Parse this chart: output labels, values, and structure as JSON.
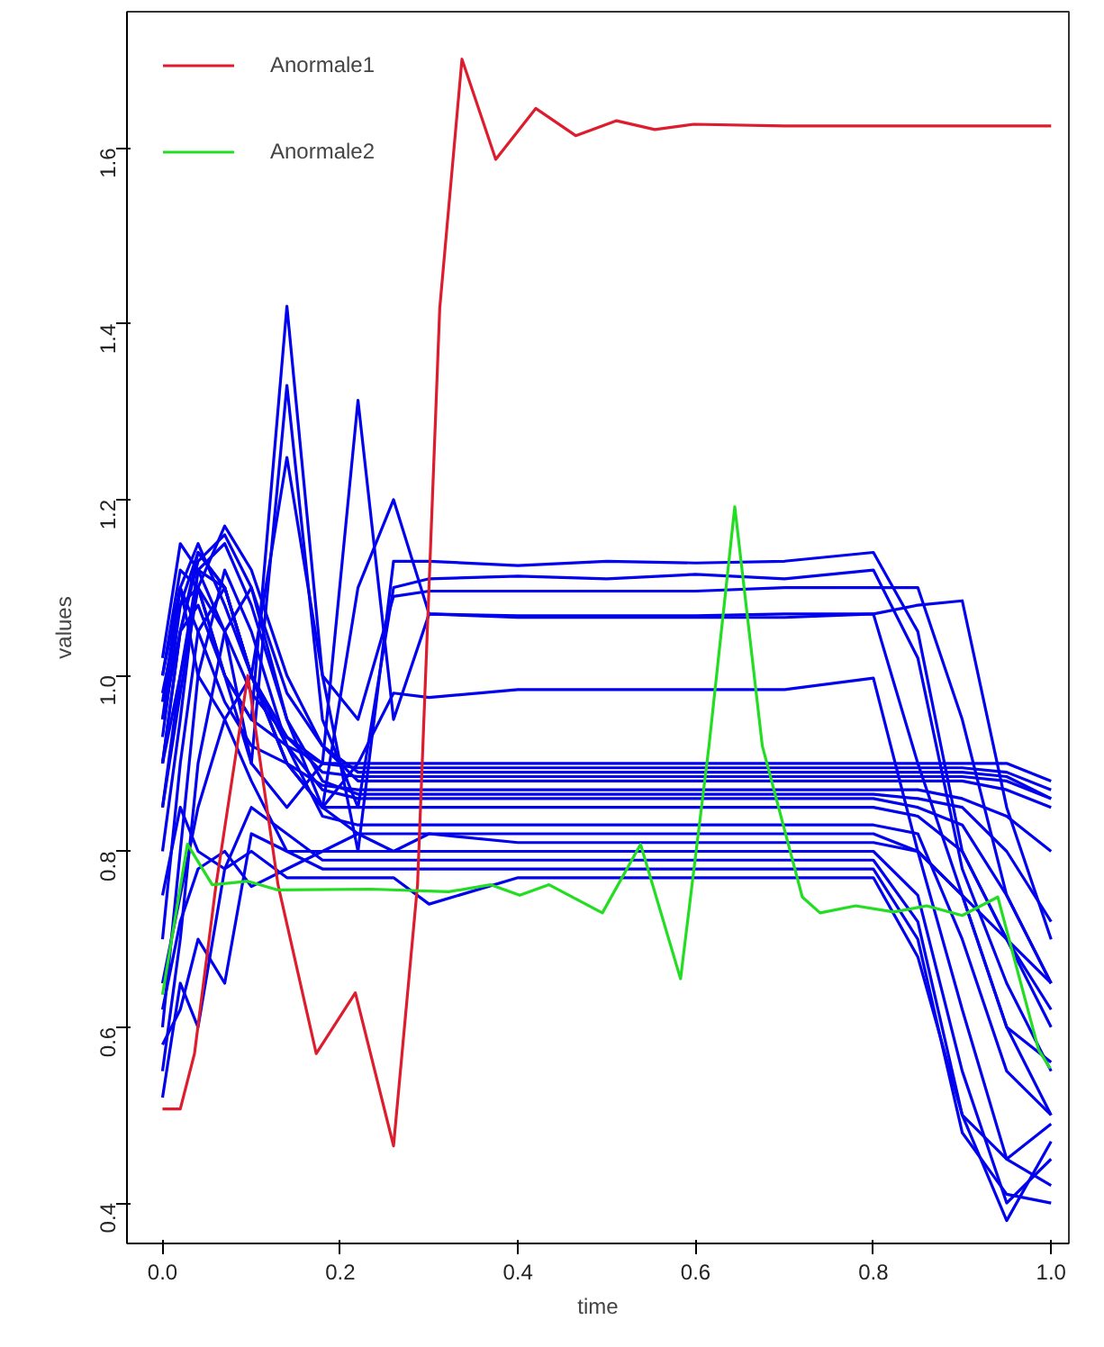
{
  "chart_data": {
    "type": "line",
    "xlabel": "time",
    "ylabel": "values",
    "legend": "top left",
    "xlim": [
      -0.04,
      1.02
    ],
    "ylim": [
      0.354,
      1.755
    ],
    "xticks": [
      {
        "value": 0.0,
        "label": "0.0"
      },
      {
        "value": 0.2,
        "label": "0.2"
      },
      {
        "value": 0.4,
        "label": "0.4"
      },
      {
        "value": 0.6,
        "label": "0.6"
      },
      {
        "value": 0.8,
        "label": "0.8"
      },
      {
        "value": 1.0,
        "label": "1.0"
      }
    ],
    "yticks": [
      {
        "value": 0.4,
        "label": "0.4"
      },
      {
        "value": 0.6,
        "label": "0.6"
      },
      {
        "value": 0.8,
        "label": "0.8"
      },
      {
        "value": 1.0,
        "label": "1.0"
      },
      {
        "value": 1.2,
        "label": "1.2"
      },
      {
        "value": 1.4,
        "label": "1.4"
      },
      {
        "value": 1.6,
        "label": "1.6"
      }
    ],
    "x": [
      0,
      0.02,
      0.04,
      0.07,
      0.1,
      0.14,
      0.18,
      0.22,
      0.26,
      0.3,
      0.4,
      0.5,
      0.6,
      0.7,
      0.8,
      0.85,
      0.9,
      0.95,
      1.0
    ],
    "series": [
      {
        "color": "#0000ee",
        "values": [
          0.95,
          1.05,
          1.08,
          1.0,
          0.95,
          1.42,
          1.0,
          0.8,
          1.13,
          1.13,
          1.125,
          1.13,
          1.128,
          1.13,
          1.14,
          1.05,
          0.8,
          0.7,
          0.6
        ]
      },
      {
        "color": "#0000ee",
        "values": [
          0.9,
          1.0,
          1.1,
          1.05,
          0.9,
          1.33,
          0.95,
          0.85,
          1.1,
          1.11,
          1.113,
          1.11,
          1.115,
          1.11,
          1.12,
          1.02,
          0.78,
          0.65,
          0.55
        ]
      },
      {
        "color": "#0000ee",
        "values": [
          1.0,
          1.1,
          1.0,
          0.95,
          1.0,
          1.248,
          1.0,
          0.95,
          1.09,
          1.096,
          1.096,
          1.096,
          1.096,
          1.1,
          1.1,
          1.1,
          0.95,
          0.75,
          0.65
        ]
      },
      {
        "color": "#0000ee",
        "values": [
          0.98,
          1.08,
          1.1,
          1.0,
          0.9,
          0.85,
          0.9,
          1.313,
          0.95,
          1.07,
          1.068,
          1.068,
          1.068,
          1.07,
          1.07,
          1.08,
          1.085,
          0.85,
          0.7
        ]
      },
      {
        "color": "#0000ee",
        "values": [
          0.85,
          1.0,
          1.12,
          1.1,
          1.0,
          0.9,
          0.85,
          1.1,
          1.2,
          1.07,
          1.066,
          1.066,
          1.066,
          1.066,
          1.07,
          0.9,
          0.75,
          0.6,
          0.5
        ]
      },
      {
        "color": "#0000ee",
        "values": [
          0.9,
          1.05,
          1.14,
          1.1,
          1.0,
          0.9,
          0.85,
          0.9,
          0.98,
          0.975,
          0.984,
          0.984,
          0.984,
          0.984,
          0.997,
          0.8,
          0.75,
          0.7,
          0.65
        ]
      },
      {
        "color": "#0000ee",
        "values": [
          1.0,
          1.12,
          1.1,
          1.0,
          0.95,
          0.92,
          0.9,
          0.9,
          0.9,
          0.9,
          0.9,
          0.9,
          0.9,
          0.9,
          0.9,
          0.9,
          0.9,
          0.9,
          0.88
        ]
      },
      {
        "color": "#0000ee",
        "values": [
          0.95,
          1.1,
          1.15,
          1.08,
          1.0,
          0.93,
          0.9,
          0.895,
          0.895,
          0.895,
          0.895,
          0.895,
          0.895,
          0.895,
          0.895,
          0.895,
          0.895,
          0.89,
          0.87
        ]
      },
      {
        "color": "#0000ee",
        "values": [
          0.9,
          1.05,
          1.13,
          1.16,
          1.1,
          0.98,
          0.92,
          0.89,
          0.89,
          0.89,
          0.89,
          0.89,
          0.89,
          0.89,
          0.89,
          0.89,
          0.89,
          0.885,
          0.86
        ]
      },
      {
        "color": "#0000ee",
        "values": [
          1.02,
          1.15,
          1.12,
          1.05,
          0.98,
          0.93,
          0.89,
          0.885,
          0.885,
          0.885,
          0.885,
          0.885,
          0.885,
          0.885,
          0.885,
          0.885,
          0.885,
          0.88,
          0.86
        ]
      },
      {
        "color": "#0000ee",
        "values": [
          0.85,
          0.98,
          1.1,
          1.17,
          1.12,
          1.0,
          0.92,
          0.88,
          0.88,
          0.88,
          0.88,
          0.88,
          0.88,
          0.88,
          0.88,
          0.88,
          0.88,
          0.87,
          0.85
        ]
      },
      {
        "color": "#0000ee",
        "values": [
          0.97,
          1.1,
          1.05,
          0.97,
          0.92,
          0.9,
          0.875,
          0.87,
          0.87,
          0.87,
          0.87,
          0.87,
          0.87,
          0.87,
          0.87,
          0.87,
          0.86,
          0.84,
          0.8
        ]
      },
      {
        "color": "#0000ee",
        "values": [
          0.8,
          0.95,
          1.12,
          1.15,
          1.08,
          0.95,
          0.88,
          0.865,
          0.865,
          0.865,
          0.865,
          0.865,
          0.865,
          0.865,
          0.865,
          0.86,
          0.85,
          0.8,
          0.72
        ]
      },
      {
        "color": "#0000ee",
        "values": [
          0.93,
          1.08,
          1.14,
          1.1,
          1.0,
          0.92,
          0.87,
          0.86,
          0.86,
          0.86,
          0.86,
          0.86,
          0.86,
          0.86,
          0.86,
          0.85,
          0.83,
          0.75,
          0.65
        ]
      },
      {
        "color": "#0000ee",
        "values": [
          0.7,
          0.9,
          1.05,
          1.1,
          1.0,
          0.9,
          0.85,
          0.85,
          0.85,
          0.85,
          0.85,
          0.85,
          0.85,
          0.85,
          0.85,
          0.84,
          0.8,
          0.7,
          0.62
        ]
      },
      {
        "color": "#0000ee",
        "values": [
          0.6,
          0.8,
          1.0,
          1.12,
          1.05,
          0.92,
          0.84,
          0.83,
          0.83,
          0.83,
          0.83,
          0.83,
          0.83,
          0.83,
          0.83,
          0.82,
          0.7,
          0.55,
          0.5
        ]
      },
      {
        "color": "#0000ee",
        "values": [
          0.55,
          0.7,
          0.9,
          1.05,
          1.1,
          0.95,
          0.85,
          0.82,
          0.82,
          0.82,
          0.82,
          0.82,
          0.82,
          0.82,
          0.82,
          0.8,
          0.62,
          0.45,
          0.42
        ]
      },
      {
        "color": "#0000ee",
        "values": [
          0.65,
          0.75,
          0.85,
          0.95,
          0.88,
          0.8,
          0.8,
          0.8,
          0.8,
          0.8,
          0.8,
          0.8,
          0.8,
          0.8,
          0.8,
          0.75,
          0.55,
          0.4,
          0.45
        ]
      },
      {
        "color": "#0000ee",
        "values": [
          0.52,
          0.65,
          0.6,
          0.78,
          0.85,
          0.82,
          0.79,
          0.79,
          0.79,
          0.79,
          0.79,
          0.79,
          0.79,
          0.79,
          0.79,
          0.72,
          0.5,
          0.38,
          0.47
        ]
      },
      {
        "color": "#0000ee",
        "values": [
          0.58,
          0.62,
          0.7,
          0.65,
          0.82,
          0.8,
          0.78,
          0.78,
          0.78,
          0.78,
          0.78,
          0.78,
          0.78,
          0.78,
          0.78,
          0.7,
          0.48,
          0.41,
          0.4
        ]
      },
      {
        "color": "#0000ee",
        "values": [
          0.75,
          0.85,
          0.8,
          0.78,
          0.8,
          0.77,
          0.77,
          0.77,
          0.77,
          0.74,
          0.77,
          0.77,
          0.77,
          0.77,
          0.77,
          0.68,
          0.5,
          0.45,
          0.49
        ]
      },
      {
        "color": "#0000ee",
        "values": [
          0.62,
          0.72,
          0.78,
          0.8,
          0.76,
          0.78,
          0.8,
          0.82,
          0.8,
          0.82,
          0.81,
          0.81,
          0.81,
          0.81,
          0.81,
          0.8,
          0.75,
          0.6,
          0.56
        ]
      },
      {
        "name": "Anormale1",
        "color": "#dd1c2e",
        "x": [
          0,
          0.02,
          0.036,
          0.06,
          0.096,
          0.13,
          0.173,
          0.217,
          0.26,
          0.287,
          0.312,
          0.337,
          0.375,
          0.42,
          0.465,
          0.511,
          0.554,
          0.598,
          0.7,
          0.8,
          0.9,
          1.0
        ],
        "values": [
          0.507,
          0.507,
          0.57,
          0.76,
          1.0,
          0.762,
          0.57,
          0.639,
          0.465,
          0.762,
          1.418,
          1.701,
          1.587,
          1.645,
          1.614,
          1.631,
          1.621,
          1.627,
          1.625,
          1.625,
          1.625,
          1.625
        ]
      },
      {
        "name": "Anormale2",
        "color": "#22dd22",
        "x": [
          0,
          0.028,
          0.056,
          0.096,
          0.13,
          0.235,
          0.322,
          0.369,
          0.402,
          0.435,
          0.495,
          0.538,
          0.583,
          0.615,
          0.644,
          0.675,
          0.72,
          0.74,
          0.78,
          0.823,
          0.86,
          0.9,
          0.94,
          0.986,
          0.999
        ],
        "values": [
          0.637,
          0.808,
          0.762,
          0.766,
          0.756,
          0.757,
          0.754,
          0.762,
          0.75,
          0.762,
          0.73,
          0.808,
          0.655,
          0.92,
          1.192,
          0.92,
          0.748,
          0.73,
          0.738,
          0.731,
          0.738,
          0.727,
          0.748,
          0.574,
          0.553
        ]
      }
    ]
  }
}
